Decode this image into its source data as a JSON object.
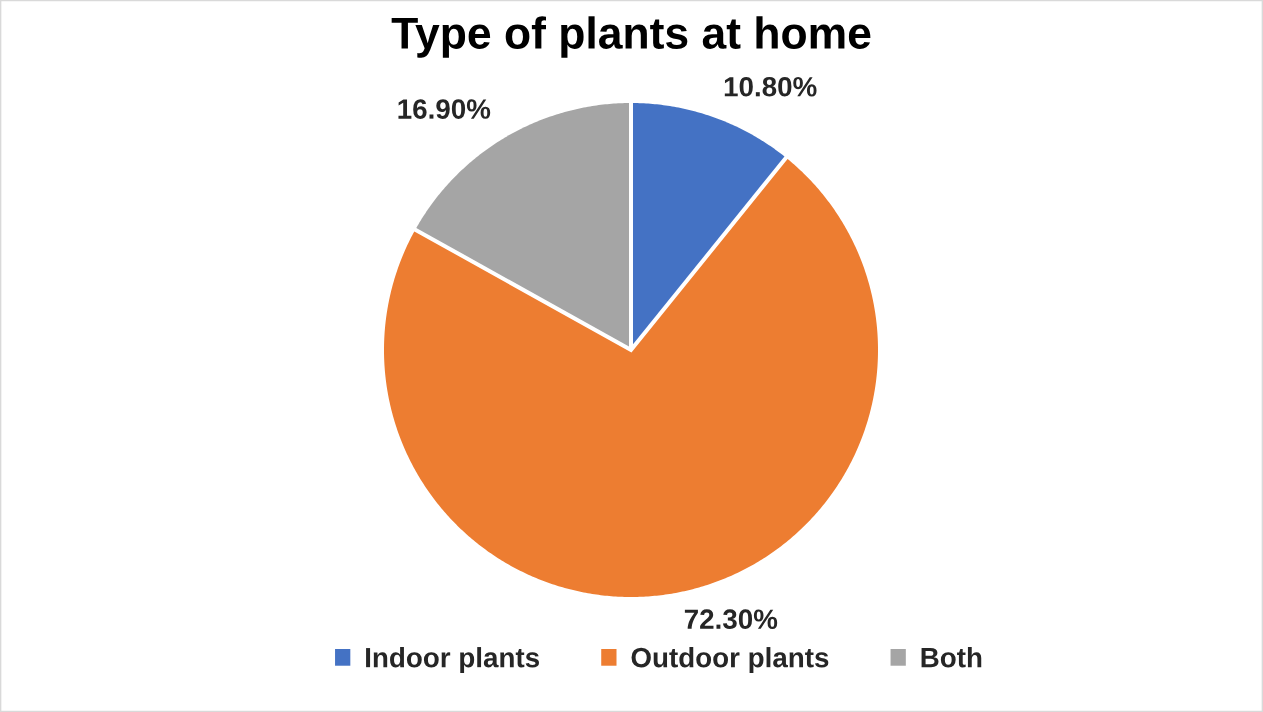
{
  "chart_data": {
    "type": "pie",
    "title": "Type of plants at home",
    "categories": [
      "Indoor plants",
      "Outdoor plants",
      "Both"
    ],
    "values": [
      10.8,
      72.3,
      16.9
    ],
    "value_labels": [
      "10.80%",
      "72.30%",
      "16.90%"
    ],
    "colors": [
      "#4472c4",
      "#ed7d31",
      "#a5a5a5"
    ],
    "legend": "bottom"
  }
}
